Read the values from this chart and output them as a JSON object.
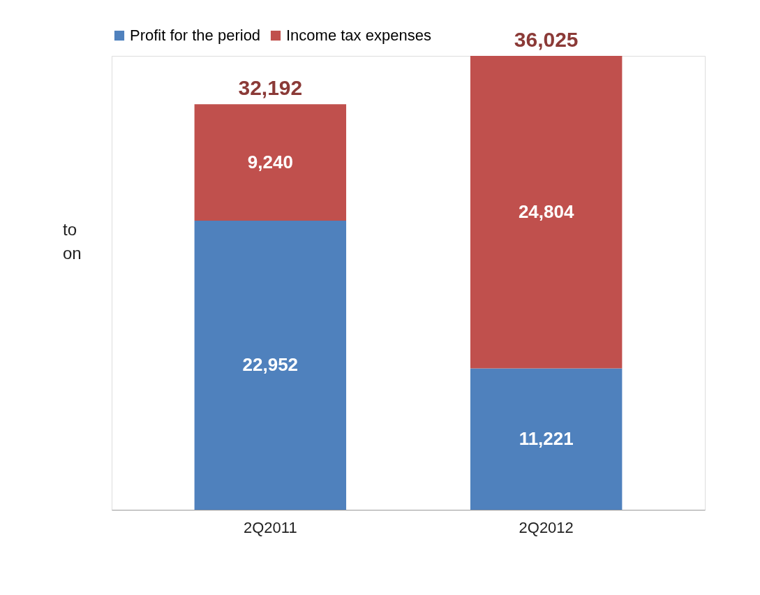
{
  "chart_data": {
    "type": "bar",
    "stacked": true,
    "categories": [
      "2Q2011",
      "2Q2012"
    ],
    "series": [
      {
        "name": "Profit for the period",
        "color": "#4f81bd",
        "values": [
          22952,
          11221
        ],
        "value_labels": [
          "22,952",
          "11,221"
        ]
      },
      {
        "name": "Income tax expenses",
        "color": "#c0504d",
        "values": [
          9240,
          24804
        ],
        "value_labels": [
          "9,240",
          "24,804"
        ]
      }
    ],
    "totals": [
      "32,192",
      "36,025"
    ],
    "tick_labels": "x",
    "legend": "top",
    "annotations": [
      "to",
      "on"
    ]
  }
}
